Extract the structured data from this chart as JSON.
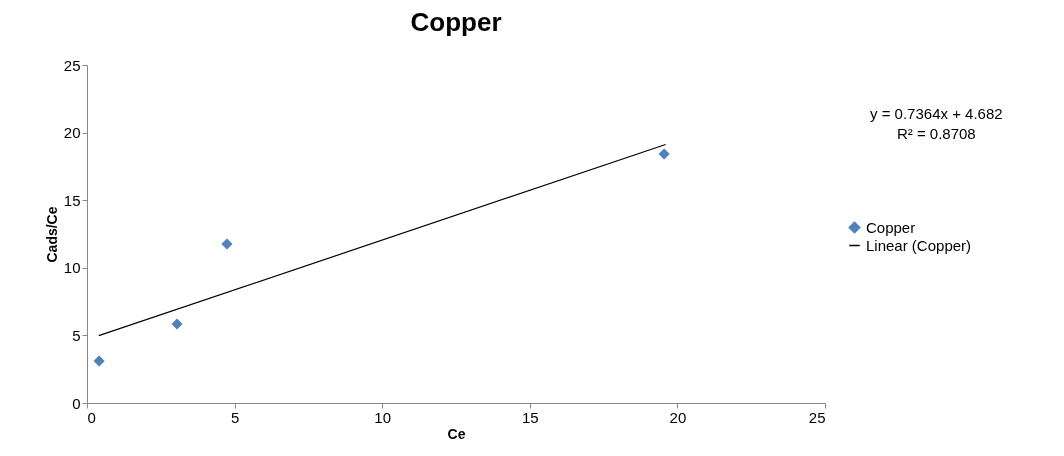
{
  "chart_data": {
    "type": "scatter",
    "title": "Copper",
    "xlabel": "Ce",
    "ylabel": "Cads/Ce",
    "xlim": [
      0,
      25
    ],
    "xticks": [
      0,
      5,
      10,
      15,
      20,
      25
    ],
    "ylim": [
      0,
      25
    ],
    "yticks": [
      0,
      5,
      10,
      15,
      20,
      25
    ],
    "grid": false,
    "legend": "right",
    "annotations": [
      "y = 0.7364x + 4.682",
      "R² = 0.8708"
    ],
    "series": [
      {
        "name": "Copper",
        "marker": "diamond",
        "color": "#4f81bd",
        "x": [
          0.41,
          3.05,
          4.74,
          19.55
        ],
        "values": [
          3.1,
          5.84,
          11.76,
          18.42
        ]
      },
      {
        "name": "Linear (Copper)",
        "type": "line",
        "color": "#000000",
        "x": [
          0.4,
          19.6
        ],
        "values": [
          4.98,
          19.12
        ]
      }
    ]
  }
}
